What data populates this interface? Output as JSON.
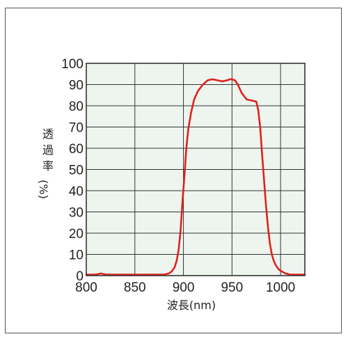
{
  "chart_data": {
    "type": "line",
    "xlabel": "波長(nm)",
    "ylabel_chars": [
      "透",
      "過",
      "率",
      "(%)"
    ],
    "xlim": [
      800,
      1025
    ],
    "ylim": [
      0,
      100
    ],
    "xticks": [
      "800",
      "850",
      "900",
      "950",
      "1000"
    ],
    "yticks": [
      "0",
      "10",
      "20",
      "30",
      "40",
      "50",
      "60",
      "70",
      "80",
      "90",
      "100"
    ],
    "grid": true,
    "series": [
      {
        "color": "#e0211b",
        "x": [
          800,
          810,
          815,
          820,
          840,
          860,
          870,
          880,
          885,
          888,
          891,
          893,
          895,
          897,
          899,
          901,
          903,
          905,
          908,
          911,
          915,
          920,
          925,
          930,
          935,
          940,
          945,
          948,
          950,
          953,
          956,
          960,
          965,
          970,
          975,
          977,
          979,
          981,
          983,
          985,
          987,
          989,
          991,
          993,
          995,
          998,
          1001,
          1005,
          1010,
          1015,
          1020,
          1025
        ],
        "y": [
          0.5,
          0.5,
          1,
          0.5,
          0.5,
          0.5,
          0.5,
          0.5,
          1,
          2,
          4,
          7,
          12,
          21,
          35,
          47,
          60,
          69,
          77,
          83,
          87,
          90,
          92,
          92.5,
          92,
          91.5,
          92,
          92.5,
          92.5,
          92,
          90,
          86,
          83,
          82.5,
          82,
          78,
          70,
          57,
          45,
          33,
          23,
          15,
          10,
          7,
          5,
          3,
          2,
          1,
          0.5,
          0.5,
          0.5,
          0.5
        ]
      }
    ]
  },
  "colors": {
    "plot_bg": "#eef5ef",
    "grid": "#333333",
    "line": "#e0211b"
  }
}
